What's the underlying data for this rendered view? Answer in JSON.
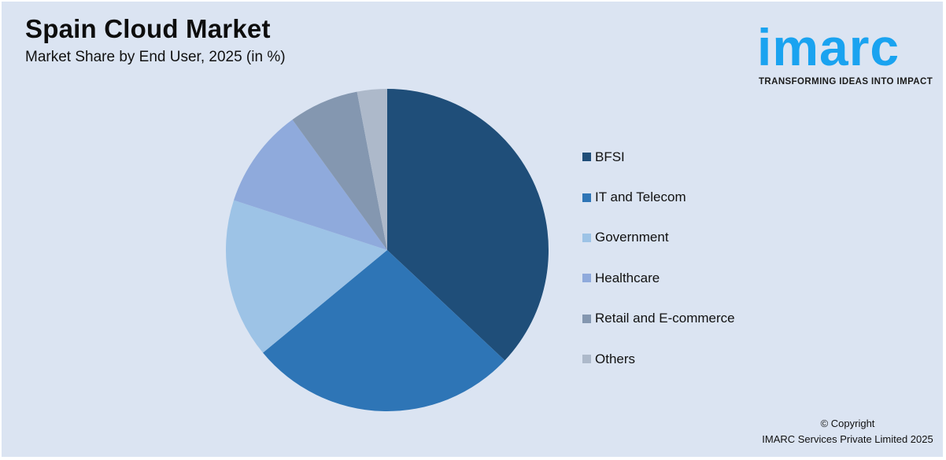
{
  "header": {
    "title": "Spain Cloud Market",
    "subtitle": "Market Share by End User, 2025 (in %)"
  },
  "logo": {
    "wordmark": "imarc",
    "tagline": "TRANSFORMING IDEAS INTO IMPACT",
    "color": "#1aa3f0"
  },
  "legend": {
    "items": [
      {
        "label": "BFSI",
        "color": "#1f4e79"
      },
      {
        "label": "IT and Telecom",
        "color": "#2e75b6"
      },
      {
        "label": "Government",
        "color": "#9dc3e6"
      },
      {
        "label": "Healthcare",
        "color": "#8faadc"
      },
      {
        "label": "Retail and E-commerce",
        "color": "#8497b0"
      },
      {
        "label": "Others",
        "color": "#adb9ca"
      }
    ]
  },
  "footer": {
    "line1": "© Copyright",
    "line2": "IMARC Services Private Limited 2025"
  },
  "chart_data": {
    "type": "pie",
    "title": "Spain Cloud Market",
    "subtitle": "Market Share by End User, 2025 (in %)",
    "categories": [
      "BFSI",
      "IT and Telecom",
      "Government",
      "Healthcare",
      "Retail and E-commerce",
      "Others"
    ],
    "values": [
      37,
      27,
      16,
      10,
      7,
      3
    ],
    "colors": [
      "#1f4e79",
      "#2e75b6",
      "#9dc3e6",
      "#8faadc",
      "#8497b0",
      "#adb9ca"
    ],
    "start_angle": "12 o'clock, clockwise",
    "legend_position": "right",
    "data_labels": false
  }
}
